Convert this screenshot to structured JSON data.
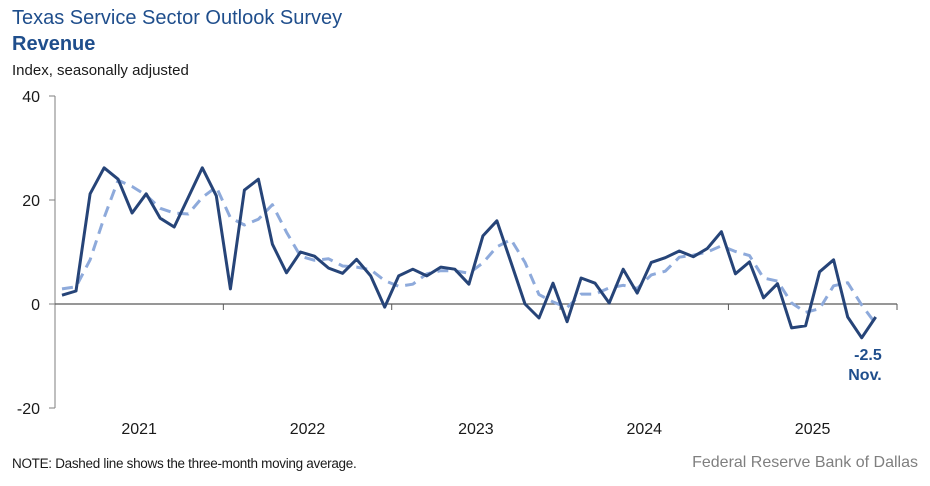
{
  "header": {
    "title": "Texas Service Sector Outlook Survey",
    "subtitle": "Revenue",
    "units": "Index, seasonally adjusted"
  },
  "footer": {
    "note": "NOTE: Dashed line shows the three-month moving average.",
    "source": "Federal Reserve Bank of Dallas"
  },
  "colors": {
    "title": "#1f4e8c",
    "series_solid": "#264478",
    "series_dashed": "#8eaadb",
    "axis": "#595959"
  },
  "chart_data": {
    "type": "line",
    "title": "Texas Service Sector Outlook Survey — Revenue",
    "xlabel": "",
    "ylabel": "Index, seasonally adjusted",
    "ylim": [
      -20,
      40
    ],
    "yticks": [
      40,
      20,
      0,
      -20
    ],
    "ytick_labels": [
      "40",
      "20",
      "0",
      "-20"
    ],
    "xlim_months": [
      "2021-01",
      "2025-12"
    ],
    "year_labels": [
      "2021",
      "2022",
      "2023",
      "2024",
      "2025"
    ],
    "grid": false,
    "x": [
      "2021-01",
      "2021-02",
      "2021-03",
      "2021-04",
      "2021-05",
      "2021-06",
      "2021-07",
      "2021-08",
      "2021-09",
      "2021-10",
      "2021-11",
      "2021-12",
      "2022-01",
      "2022-02",
      "2022-03",
      "2022-04",
      "2022-05",
      "2022-06",
      "2022-07",
      "2022-08",
      "2022-09",
      "2022-10",
      "2022-11",
      "2022-12",
      "2023-01",
      "2023-02",
      "2023-03",
      "2023-04",
      "2023-05",
      "2023-06",
      "2023-07",
      "2023-08",
      "2023-09",
      "2023-10",
      "2023-11",
      "2023-12",
      "2024-01",
      "2024-02",
      "2024-03",
      "2024-04",
      "2024-05",
      "2024-06",
      "2024-07",
      "2024-08",
      "2024-09",
      "2024-10",
      "2024-11",
      "2024-12",
      "2025-01",
      "2025-02",
      "2025-03",
      "2025-04",
      "2025-05",
      "2025-06",
      "2025-07",
      "2025-08",
      "2025-09",
      "2025-10",
      "2025-11"
    ],
    "series": [
      {
        "name": "Revenue index",
        "style": "solid",
        "values": [
          1.7,
          2.5,
          21.2,
          26.2,
          24.0,
          17.5,
          21.2,
          16.5,
          14.8,
          20.5,
          26.2,
          20.8,
          2.9,
          21.9,
          24.0,
          11.5,
          6.0,
          10.0,
          9.2,
          6.9,
          5.9,
          8.6,
          5.4,
          -0.6,
          5.4,
          6.7,
          5.4,
          7.1,
          6.7,
          3.8,
          13.1,
          16.0,
          8.0,
          0.0,
          -2.7,
          4.0,
          -3.4,
          5.0,
          4.0,
          0.2,
          6.7,
          2.1,
          8.0,
          8.9,
          10.2,
          9.1,
          10.7,
          13.9,
          5.8,
          8.1,
          1.2,
          3.9,
          -4.6,
          -4.2,
          6.2,
          8.5,
          -2.5,
          -6.5,
          -2.5
        ]
      },
      {
        "name": "Three-month moving average",
        "style": "dashed",
        "values": [
          2.9,
          3.3,
          8.5,
          16.6,
          23.8,
          22.6,
          20.9,
          18.4,
          17.5,
          17.3,
          20.5,
          22.5,
          16.6,
          15.2,
          16.3,
          19.1,
          13.8,
          9.2,
          8.4,
          8.7,
          7.3,
          7.1,
          6.6,
          4.5,
          3.4,
          3.8,
          5.8,
          6.4,
          6.4,
          5.9,
          7.9,
          11.0,
          12.4,
          8.0,
          1.8,
          0.4,
          -0.7,
          1.9,
          1.9,
          3.1,
          3.6,
          3.0,
          5.6,
          6.3,
          9.0,
          9.4,
          10.0,
          11.2,
          10.1,
          9.3,
          5.0,
          4.4,
          0.2,
          -1.6,
          -0.9,
          3.5,
          4.1,
          -0.2,
          -3.8
        ]
      }
    ],
    "annotations": [
      {
        "text": "-2.5",
        "refers_to": "2025-11"
      },
      {
        "text": "Nov.",
        "refers_to": "2025-11"
      }
    ],
    "legend": "none"
  }
}
